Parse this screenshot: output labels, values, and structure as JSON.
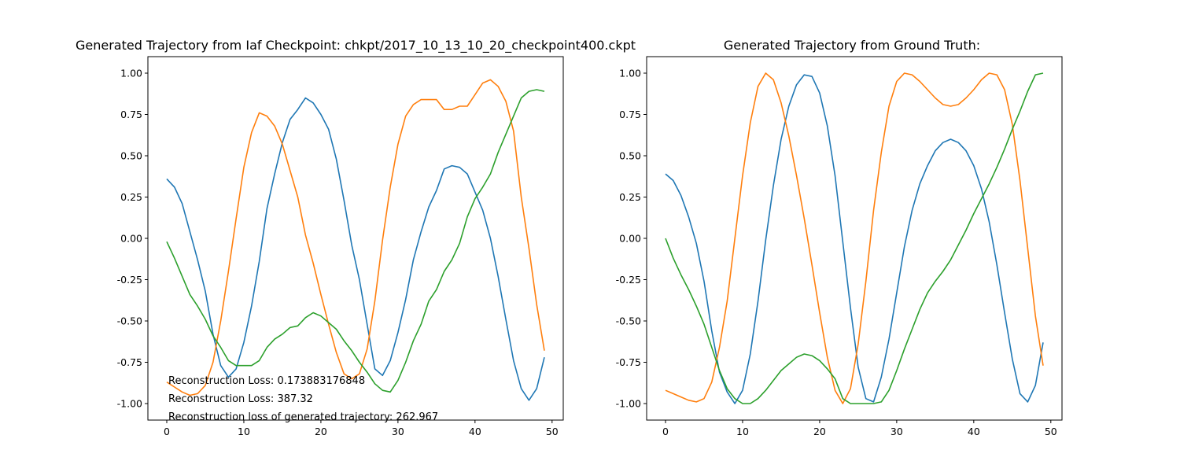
{
  "chart_data": [
    {
      "type": "line",
      "title": "Generated Trajectory from Iaf Checkpoint: chkpt/2017_10_13_10_20_checkpoint400.ckpt",
      "xlabel": "",
      "ylabel": "",
      "xlim": [
        -2.45,
        51.45
      ],
      "ylim": [
        -1.1,
        1.1
      ],
      "x_ticks": [
        0,
        10,
        20,
        30,
        40,
        50
      ],
      "y_ticks": [
        -1.0,
        -0.75,
        -0.5,
        -0.25,
        0.0,
        0.25,
        0.5,
        0.75,
        1.0
      ],
      "grid": false,
      "legend": "none",
      "x": [
        0,
        1,
        2,
        3,
        4,
        5,
        6,
        7,
        8,
        9,
        10,
        11,
        12,
        13,
        14,
        15,
        16,
        17,
        18,
        19,
        20,
        21,
        22,
        23,
        24,
        25,
        26,
        27,
        28,
        29,
        30,
        31,
        32,
        33,
        34,
        35,
        36,
        37,
        38,
        39,
        40,
        41,
        42,
        43,
        44,
        45,
        46,
        47,
        48,
        49
      ],
      "series": [
        {
          "color": "#1f77b4",
          "values": [
            0.36,
            0.31,
            0.21,
            0.04,
            -0.13,
            -0.32,
            -0.58,
            -0.77,
            -0.84,
            -0.79,
            -0.63,
            -0.41,
            -0.14,
            0.18,
            0.39,
            0.58,
            0.72,
            0.78,
            0.85,
            0.82,
            0.75,
            0.66,
            0.48,
            0.23,
            -0.04,
            -0.25,
            -0.52,
            -0.79,
            -0.83,
            -0.74,
            -0.57,
            -0.37,
            -0.13,
            0.04,
            0.19,
            0.29,
            0.42,
            0.44,
            0.43,
            0.39,
            0.28,
            0.17,
            0.0,
            -0.23,
            -0.49,
            -0.74,
            -0.91,
            -0.98,
            -0.91,
            -0.72
          ]
        },
        {
          "color": "#ff7f0e",
          "values": [
            -0.87,
            -0.9,
            -0.93,
            -0.95,
            -0.94,
            -0.89,
            -0.75,
            -0.5,
            -0.2,
            0.12,
            0.43,
            0.64,
            0.76,
            0.74,
            0.68,
            0.57,
            0.41,
            0.25,
            0.02,
            -0.15,
            -0.34,
            -0.52,
            -0.69,
            -0.82,
            -0.85,
            -0.82,
            -0.67,
            -0.38,
            -0.01,
            0.31,
            0.57,
            0.74,
            0.81,
            0.84,
            0.84,
            0.84,
            0.78,
            0.78,
            0.8,
            0.8,
            0.87,
            0.94,
            0.96,
            0.92,
            0.83,
            0.65,
            0.25,
            -0.06,
            -0.4,
            -0.68
          ]
        },
        {
          "color": "#2ca02c",
          "values": [
            -0.02,
            -0.12,
            -0.23,
            -0.34,
            -0.41,
            -0.49,
            -0.59,
            -0.66,
            -0.74,
            -0.77,
            -0.77,
            -0.77,
            -0.74,
            -0.66,
            -0.61,
            -0.58,
            -0.54,
            -0.53,
            -0.48,
            -0.45,
            -0.47,
            -0.51,
            -0.55,
            -0.62,
            -0.68,
            -0.75,
            -0.81,
            -0.88,
            -0.92,
            -0.93,
            -0.86,
            -0.75,
            -0.62,
            -0.52,
            -0.38,
            -0.31,
            -0.2,
            -0.13,
            -0.03,
            0.13,
            0.24,
            0.31,
            0.39,
            0.52,
            0.63,
            0.74,
            0.85,
            0.89,
            0.9,
            0.89
          ]
        }
      ],
      "annotations": [
        "Reconstruction Loss: 0.173883176848",
        "Reconstruction Loss: 387.32",
        "Reconstruction loss of generated trajectory: 262.967"
      ]
    },
    {
      "type": "line",
      "title": "Generated Trajectory from Ground Truth:",
      "xlabel": "",
      "ylabel": "",
      "xlim": [
        -2.45,
        51.45
      ],
      "ylim": [
        -1.1,
        1.1
      ],
      "x_ticks": [
        0,
        10,
        20,
        30,
        40,
        50
      ],
      "y_ticks": [
        -1.0,
        -0.75,
        -0.5,
        -0.25,
        0.0,
        0.25,
        0.5,
        0.75,
        1.0
      ],
      "grid": false,
      "legend": "none",
      "x": [
        0,
        1,
        2,
        3,
        4,
        5,
        6,
        7,
        8,
        9,
        10,
        11,
        12,
        13,
        14,
        15,
        16,
        17,
        18,
        19,
        20,
        21,
        22,
        23,
        24,
        25,
        26,
        27,
        28,
        29,
        30,
        31,
        32,
        33,
        34,
        35,
        36,
        37,
        38,
        39,
        40,
        41,
        42,
        43,
        44,
        45,
        46,
        47,
        48,
        49
      ],
      "series": [
        {
          "color": "#1f77b4",
          "values": [
            0.39,
            0.35,
            0.26,
            0.13,
            -0.03,
            -0.26,
            -0.56,
            -0.81,
            -0.93,
            -1.0,
            -0.92,
            -0.7,
            -0.38,
            -0.01,
            0.32,
            0.6,
            0.8,
            0.93,
            0.99,
            0.98,
            0.88,
            0.68,
            0.38,
            -0.02,
            -0.42,
            -0.78,
            -0.97,
            -0.99,
            -0.84,
            -0.61,
            -0.33,
            -0.05,
            0.17,
            0.33,
            0.44,
            0.53,
            0.58,
            0.6,
            0.58,
            0.53,
            0.44,
            0.3,
            0.1,
            -0.16,
            -0.45,
            -0.73,
            -0.94,
            -0.99,
            -0.89,
            -0.63
          ]
        },
        {
          "color": "#ff7f0e",
          "values": [
            -0.92,
            -0.94,
            -0.96,
            -0.98,
            -0.99,
            -0.97,
            -0.87,
            -0.66,
            -0.38,
            0.0,
            0.38,
            0.7,
            0.92,
            1.0,
            0.96,
            0.82,
            0.62,
            0.38,
            0.12,
            -0.16,
            -0.45,
            -0.72,
            -0.92,
            -1.0,
            -0.91,
            -0.64,
            -0.26,
            0.17,
            0.52,
            0.8,
            0.95,
            1.0,
            0.99,
            0.95,
            0.9,
            0.85,
            0.81,
            0.8,
            0.81,
            0.85,
            0.9,
            0.96,
            1.0,
            0.99,
            0.9,
            0.69,
            0.35,
            -0.06,
            -0.47,
            -0.77
          ]
        },
        {
          "color": "#2ca02c",
          "values": [
            0.0,
            -0.12,
            -0.22,
            -0.31,
            -0.41,
            -0.52,
            -0.66,
            -0.8,
            -0.91,
            -0.97,
            -1.0,
            -1.0,
            -0.97,
            -0.92,
            -0.86,
            -0.8,
            -0.76,
            -0.72,
            -0.7,
            -0.71,
            -0.74,
            -0.79,
            -0.85,
            -0.97,
            -1.0,
            -1.0,
            -1.0,
            -1.0,
            -0.99,
            -0.92,
            -0.8,
            -0.67,
            -0.55,
            -0.43,
            -0.33,
            -0.26,
            -0.2,
            -0.13,
            -0.04,
            0.05,
            0.15,
            0.24,
            0.33,
            0.43,
            0.54,
            0.66,
            0.77,
            0.89,
            0.99,
            1.0
          ]
        }
      ],
      "annotations": []
    }
  ]
}
